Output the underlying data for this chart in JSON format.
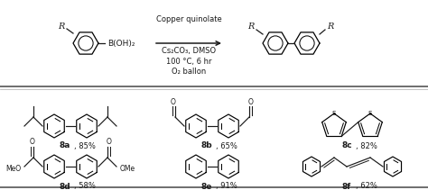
{
  "bg_color": "#ffffff",
  "line_color": "#1a1a1a",
  "figsize": [
    4.74,
    2.11
  ],
  "dpi": 100,
  "reaction": {
    "reagent_above": "Copper quinolate",
    "reagent_below1": "Cs₂CO₃, DMSO",
    "reagent_below2": "100 °C, 6 hr",
    "reagent_below3": "O₂ ballon"
  },
  "labels": [
    {
      "id": "8a",
      "yield": "85%"
    },
    {
      "id": "8b",
      "yield": "65%"
    },
    {
      "id": "8c",
      "yield": "82%"
    },
    {
      "id": "8d",
      "yield": "58%"
    },
    {
      "id": "8e",
      "yield": "91%"
    },
    {
      "id": "8f",
      "yield": "62%"
    }
  ]
}
